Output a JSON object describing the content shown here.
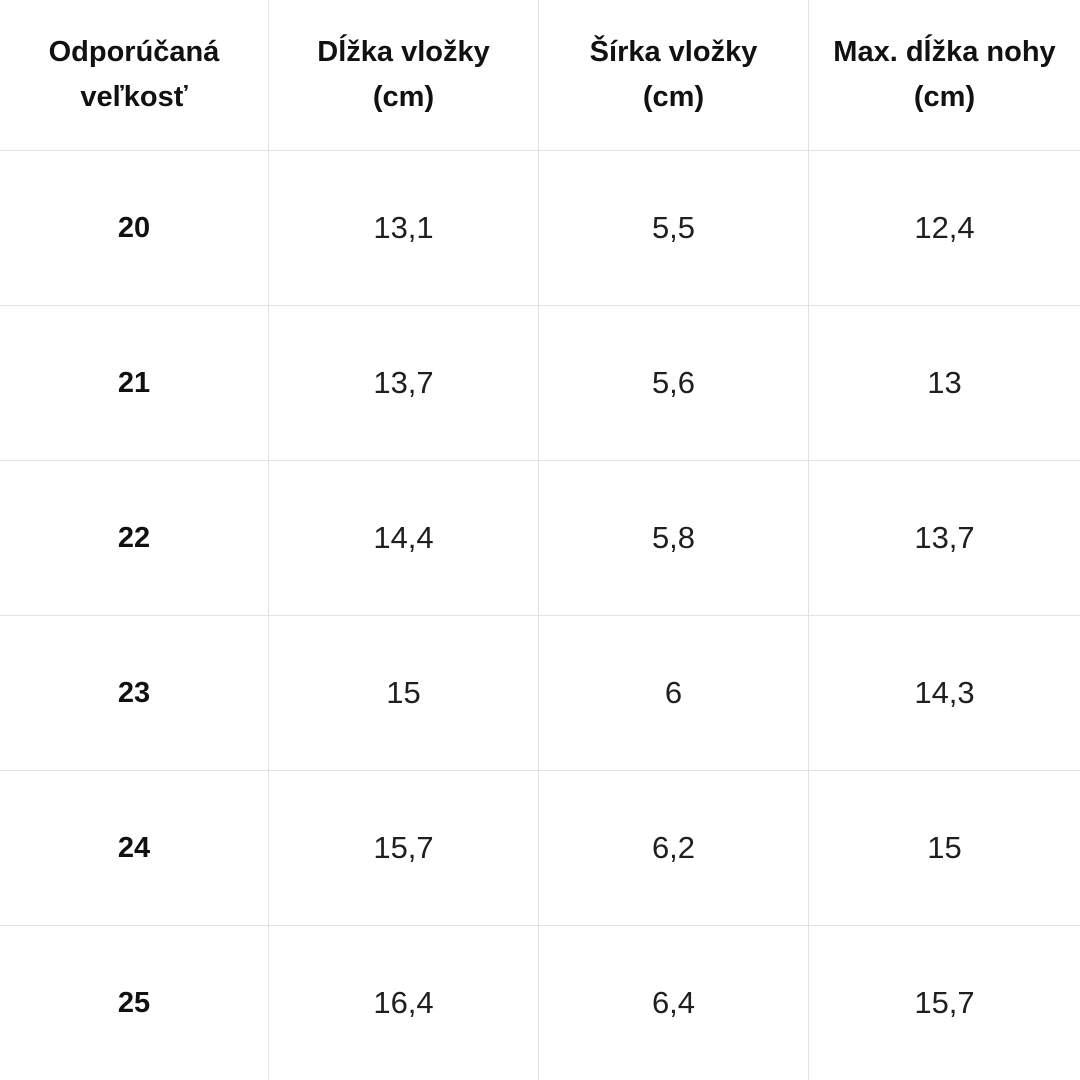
{
  "ui": {
    "colors": {
      "border": "#e2e2e2",
      "header_text": "#111111",
      "body_text": "#1f1f1f",
      "background": "#ffffff"
    }
  },
  "chart_data": {
    "type": "table",
    "columns": [
      "Odporúčaná veľkosť",
      "Dĺžka vložky (cm)",
      "Šírka vložky (cm)",
      "Max. dĺžka nohy (cm)"
    ],
    "rows": [
      [
        "20",
        "13,1",
        "5,5",
        "12,4"
      ],
      [
        "21",
        "13,7",
        "5,6",
        "13"
      ],
      [
        "22",
        "14,4",
        "5,8",
        "13,7"
      ],
      [
        "23",
        "15",
        "6",
        "14,3"
      ],
      [
        "24",
        "15,7",
        "6,2",
        "15"
      ],
      [
        "25",
        "16,4",
        "6,4",
        "15,7"
      ]
    ]
  }
}
